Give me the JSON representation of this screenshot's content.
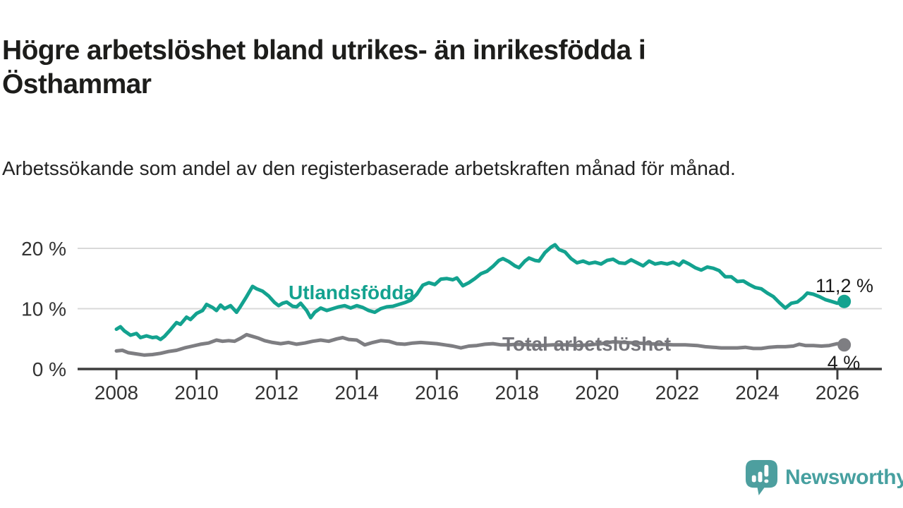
{
  "header": {
    "title": "Högre arbetslöshet bland utrikes- än inrikesfödda i Östhammar",
    "subtitle": "Arbetssökande som andel av den registerbaserade arbetskraften månad för månad."
  },
  "footer": {
    "brand": "Newsworthy",
    "logo_icon": "newsworthy-speech-bubble-bar-chart-icon"
  },
  "colors": {
    "series_utlandsfodda": "#13a28f",
    "series_total": "#7e7e82",
    "label_total_text": "#75757b",
    "logo_teal": "#47a0a0",
    "title_text": "#1d1d1b",
    "annotation_text": "#1a1a1a",
    "grid": "#d9d9d9",
    "axis": "#3d3d3d",
    "tick_text": "#333333",
    "background": "#ffffff"
  },
  "chart_data": {
    "type": "line",
    "title": "Högre arbetslöshet bland utrikes- än inrikesfödda i Östhammar",
    "subtitle": "Arbetssökande som andel av den registerbaserade arbetskraften månad för månad.",
    "xlabel": "",
    "ylabel": "",
    "x_domain": [
      2008,
      2026.2
    ],
    "y_domain": [
      0,
      20
    ],
    "grid": "horizontal-only",
    "legend": "inline-labels-on-lines",
    "x_ticks": [
      {
        "value": 2008,
        "label": "2008"
      },
      {
        "value": 2010,
        "label": "2010"
      },
      {
        "value": 2012,
        "label": "2012"
      },
      {
        "value": 2014,
        "label": "2014"
      },
      {
        "value": 2016,
        "label": "2016"
      },
      {
        "value": 2018,
        "label": "2018"
      },
      {
        "value": 2020,
        "label": "2020"
      },
      {
        "value": 2022,
        "label": "2022"
      },
      {
        "value": 2024,
        "label": "2024"
      },
      {
        "value": 2026,
        "label": "2026"
      }
    ],
    "y_ticks": [
      {
        "value": 0,
        "label": "0 %"
      },
      {
        "value": 10,
        "label": "10 %"
      },
      {
        "value": 20,
        "label": "20 %"
      }
    ],
    "style": {
      "grid_color": "#d9d9d9",
      "axis_color": "#3d3d3d",
      "tick_text_color": "#333333",
      "line_width": 5,
      "end_dot_radius": 9.5
    },
    "series": [
      {
        "name": "Utlandsfödda",
        "color": "#13a28f",
        "end_label": "11,2 %",
        "end_value": 11.2,
        "points": [
          [
            2008,
            6.6
          ],
          [
            2008.1,
            7
          ],
          [
            2008.2,
            6.3
          ],
          [
            2008.35,
            5.6
          ],
          [
            2008.5,
            5.9
          ],
          [
            2008.6,
            5.2
          ],
          [
            2008.75,
            5.5
          ],
          [
            2008.9,
            5.2
          ],
          [
            2009,
            5.3
          ],
          [
            2009.1,
            4.9
          ],
          [
            2009.2,
            5.4
          ],
          [
            2009.35,
            6.5
          ],
          [
            2009.5,
            7.7
          ],
          [
            2009.6,
            7.4
          ],
          [
            2009.75,
            8.6
          ],
          [
            2009.85,
            8.2
          ],
          [
            2010,
            9.2
          ],
          [
            2010.15,
            9.7
          ],
          [
            2010.25,
            10.7
          ],
          [
            2010.4,
            10.2
          ],
          [
            2010.5,
            9.7
          ],
          [
            2010.6,
            10.6
          ],
          [
            2010.7,
            10
          ],
          [
            2010.85,
            10.5
          ],
          [
            2011,
            9.4
          ],
          [
            2011.1,
            10.4
          ],
          [
            2011.25,
            12
          ],
          [
            2011.4,
            13.7
          ],
          [
            2011.5,
            13.3
          ],
          [
            2011.65,
            12.9
          ],
          [
            2011.8,
            12.1
          ],
          [
            2011.95,
            11
          ],
          [
            2012.05,
            10.5
          ],
          [
            2012.15,
            10.9
          ],
          [
            2012.25,
            11.1
          ],
          [
            2012.4,
            10.4
          ],
          [
            2012.5,
            10.3
          ],
          [
            2012.6,
            10.9
          ],
          [
            2012.75,
            9.7
          ],
          [
            2012.85,
            8.5
          ],
          [
            2012.95,
            9.4
          ],
          [
            2013.1,
            10.1
          ],
          [
            2013.25,
            9.7
          ],
          [
            2013.4,
            10
          ],
          [
            2013.55,
            10.3
          ],
          [
            2013.7,
            10.5
          ],
          [
            2013.85,
            10.1
          ],
          [
            2014,
            10.5
          ],
          [
            2014.15,
            10.2
          ],
          [
            2014.3,
            9.7
          ],
          [
            2014.45,
            9.4
          ],
          [
            2014.6,
            10
          ],
          [
            2014.75,
            10.3
          ],
          [
            2014.9,
            10.4
          ],
          [
            2015.05,
            10.7
          ],
          [
            2015.2,
            11
          ],
          [
            2015.35,
            11.4
          ],
          [
            2015.5,
            12.4
          ],
          [
            2015.65,
            13.9
          ],
          [
            2015.8,
            14.3
          ],
          [
            2015.95,
            14
          ],
          [
            2016.1,
            14.9
          ],
          [
            2016.25,
            15
          ],
          [
            2016.4,
            14.8
          ],
          [
            2016.5,
            15.1
          ],
          [
            2016.65,
            13.8
          ],
          [
            2016.8,
            14.3
          ],
          [
            2016.95,
            15
          ],
          [
            2017.1,
            15.8
          ],
          [
            2017.25,
            16.2
          ],
          [
            2017.4,
            17
          ],
          [
            2017.55,
            18
          ],
          [
            2017.65,
            18.3
          ],
          [
            2017.8,
            17.8
          ],
          [
            2017.95,
            17.1
          ],
          [
            2018.05,
            16.8
          ],
          [
            2018.2,
            17.9
          ],
          [
            2018.3,
            18.4
          ],
          [
            2018.45,
            18
          ],
          [
            2018.55,
            17.9
          ],
          [
            2018.7,
            19.3
          ],
          [
            2018.85,
            20.2
          ],
          [
            2018.95,
            20.6
          ],
          [
            2019.05,
            19.8
          ],
          [
            2019.2,
            19.4
          ],
          [
            2019.35,
            18.3
          ],
          [
            2019.5,
            17.6
          ],
          [
            2019.65,
            17.9
          ],
          [
            2019.8,
            17.5
          ],
          [
            2019.95,
            17.7
          ],
          [
            2020.1,
            17.4
          ],
          [
            2020.25,
            18
          ],
          [
            2020.4,
            18.2
          ],
          [
            2020.55,
            17.6
          ],
          [
            2020.7,
            17.5
          ],
          [
            2020.85,
            18.1
          ],
          [
            2021,
            17.6
          ],
          [
            2021.15,
            17.1
          ],
          [
            2021.3,
            17.9
          ],
          [
            2021.45,
            17.4
          ],
          [
            2021.6,
            17.6
          ],
          [
            2021.75,
            17.4
          ],
          [
            2021.9,
            17.7
          ],
          [
            2022.05,
            17.2
          ],
          [
            2022.15,
            17.9
          ],
          [
            2022.3,
            17.4
          ],
          [
            2022.45,
            16.8
          ],
          [
            2022.6,
            16.4
          ],
          [
            2022.75,
            16.9
          ],
          [
            2022.9,
            16.7
          ],
          [
            2023.05,
            16.3
          ],
          [
            2023.2,
            15.3
          ],
          [
            2023.35,
            15.3
          ],
          [
            2023.5,
            14.5
          ],
          [
            2023.65,
            14.6
          ],
          [
            2023.8,
            14
          ],
          [
            2023.95,
            13.5
          ],
          [
            2024.1,
            13.3
          ],
          [
            2024.25,
            12.6
          ],
          [
            2024.4,
            12
          ],
          [
            2024.55,
            11
          ],
          [
            2024.7,
            10.1
          ],
          [
            2024.85,
            10.9
          ],
          [
            2025,
            11.1
          ],
          [
            2025.15,
            11.9
          ],
          [
            2025.25,
            12.6
          ],
          [
            2025.4,
            12.4
          ],
          [
            2025.55,
            12
          ],
          [
            2025.7,
            11.5
          ],
          [
            2025.85,
            11.2
          ],
          [
            2026,
            10.9
          ],
          [
            2026.17,
            11.2
          ]
        ]
      },
      {
        "name": "Total arbetslöshet",
        "color": "#7e7e82",
        "end_label": "4 %",
        "end_value": 4,
        "points": [
          [
            2008,
            3
          ],
          [
            2008.15,
            3.1
          ],
          [
            2008.3,
            2.7
          ],
          [
            2008.5,
            2.5
          ],
          [
            2008.7,
            2.3
          ],
          [
            2008.9,
            2.4
          ],
          [
            2009.1,
            2.6
          ],
          [
            2009.3,
            2.9
          ],
          [
            2009.5,
            3.1
          ],
          [
            2009.7,
            3.5
          ],
          [
            2009.9,
            3.8
          ],
          [
            2010.1,
            4.1
          ],
          [
            2010.3,
            4.3
          ],
          [
            2010.5,
            4.8
          ],
          [
            2010.65,
            4.6
          ],
          [
            2010.8,
            4.7
          ],
          [
            2010.95,
            4.6
          ],
          [
            2011.1,
            5.1
          ],
          [
            2011.25,
            5.7
          ],
          [
            2011.4,
            5.4
          ],
          [
            2011.55,
            5.1
          ],
          [
            2011.7,
            4.7
          ],
          [
            2011.9,
            4.4
          ],
          [
            2012.1,
            4.2
          ],
          [
            2012.3,
            4.4
          ],
          [
            2012.5,
            4.1
          ],
          [
            2012.7,
            4.3
          ],
          [
            2012.9,
            4.6
          ],
          [
            2013.1,
            4.8
          ],
          [
            2013.3,
            4.6
          ],
          [
            2013.5,
            5
          ],
          [
            2013.65,
            5.2
          ],
          [
            2013.8,
            4.9
          ],
          [
            2014,
            4.8
          ],
          [
            2014.2,
            4
          ],
          [
            2014.4,
            4.4
          ],
          [
            2014.6,
            4.7
          ],
          [
            2014.8,
            4.6
          ],
          [
            2015,
            4.2
          ],
          [
            2015.2,
            4.1
          ],
          [
            2015.4,
            4.3
          ],
          [
            2015.6,
            4.4
          ],
          [
            2015.8,
            4.3
          ],
          [
            2016,
            4.2
          ],
          [
            2016.2,
            4
          ],
          [
            2016.4,
            3.8
          ],
          [
            2016.6,
            3.5
          ],
          [
            2016.8,
            3.8
          ],
          [
            2017,
            3.9
          ],
          [
            2017.2,
            4.1
          ],
          [
            2017.4,
            4.2
          ],
          [
            2017.6,
            4
          ],
          [
            2017.8,
            4
          ],
          [
            2018,
            4.1
          ],
          [
            2018.3,
            4
          ],
          [
            2018.6,
            3.9
          ],
          [
            2018.9,
            4
          ],
          [
            2019.2,
            4
          ],
          [
            2019.5,
            3.9
          ],
          [
            2019.8,
            4
          ],
          [
            2020.1,
            4.2
          ],
          [
            2020.4,
            4.5
          ],
          [
            2020.7,
            4.4
          ],
          [
            2021,
            4.3
          ],
          [
            2021.3,
            4.2
          ],
          [
            2021.6,
            4.1
          ],
          [
            2021.9,
            4
          ],
          [
            2022.2,
            4
          ],
          [
            2022.5,
            3.9
          ],
          [
            2022.7,
            3.7
          ],
          [
            2022.9,
            3.6
          ],
          [
            2023.1,
            3.5
          ],
          [
            2023.3,
            3.5
          ],
          [
            2023.5,
            3.5
          ],
          [
            2023.7,
            3.6
          ],
          [
            2023.9,
            3.4
          ],
          [
            2024.1,
            3.4
          ],
          [
            2024.3,
            3.6
          ],
          [
            2024.5,
            3.7
          ],
          [
            2024.7,
            3.7
          ],
          [
            2024.9,
            3.8
          ],
          [
            2025.05,
            4.1
          ],
          [
            2025.2,
            3.9
          ],
          [
            2025.4,
            3.9
          ],
          [
            2025.6,
            3.8
          ],
          [
            2025.8,
            3.9
          ],
          [
            2026,
            4.2
          ],
          [
            2026.17,
            4
          ]
        ]
      }
    ]
  }
}
